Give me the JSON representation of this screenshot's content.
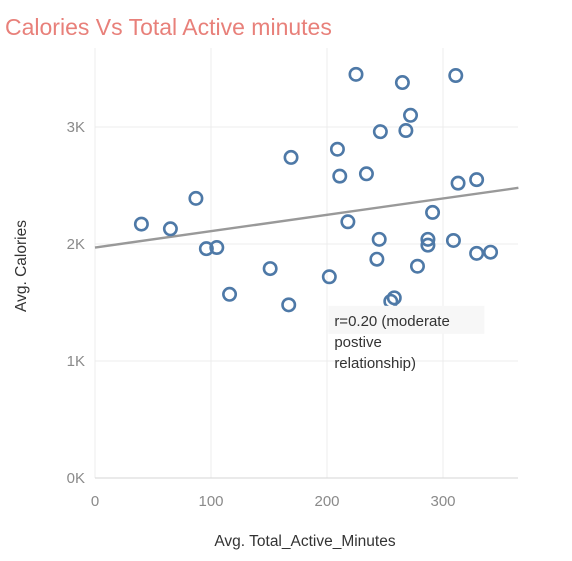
{
  "chart_data": {
    "type": "scatter",
    "title": "Calories Vs Total Active minutes",
    "xlabel": "Avg. Total_Active_Minutes",
    "ylabel": "Avg. Calories",
    "xlim": [
      0,
      365
    ],
    "ylim": [
      0,
      3700
    ],
    "x_ticks": [
      0,
      100,
      200,
      300
    ],
    "x_tick_labels": [
      "0",
      "100",
      "200",
      "300"
    ],
    "y_ticks": [
      0,
      1000,
      2000,
      3000
    ],
    "y_tick_labels": [
      "0K",
      "1K",
      "2K",
      "3K"
    ],
    "grid": true,
    "points": [
      {
        "x": 40,
        "y": 2170
      },
      {
        "x": 65,
        "y": 2130
      },
      {
        "x": 87,
        "y": 2390
      },
      {
        "x": 96,
        "y": 1960
      },
      {
        "x": 105,
        "y": 1970
      },
      {
        "x": 116,
        "y": 1570
      },
      {
        "x": 151,
        "y": 1790
      },
      {
        "x": 167,
        "y": 1480
      },
      {
        "x": 169,
        "y": 2740
      },
      {
        "x": 202,
        "y": 1720
      },
      {
        "x": 209,
        "y": 2810
      },
      {
        "x": 211,
        "y": 2580
      },
      {
        "x": 218,
        "y": 2190
      },
      {
        "x": 225,
        "y": 3450
      },
      {
        "x": 234,
        "y": 2600
      },
      {
        "x": 243,
        "y": 1870
      },
      {
        "x": 245,
        "y": 2040
      },
      {
        "x": 246,
        "y": 2960
      },
      {
        "x": 255,
        "y": 1510
      },
      {
        "x": 258,
        "y": 1540
      },
      {
        "x": 265,
        "y": 3380
      },
      {
        "x": 268,
        "y": 2970
      },
      {
        "x": 272,
        "y": 3100
      },
      {
        "x": 278,
        "y": 1810
      },
      {
        "x": 287,
        "y": 2040
      },
      {
        "x": 287,
        "y": 1990
      },
      {
        "x": 291,
        "y": 2270
      },
      {
        "x": 309,
        "y": 2030
      },
      {
        "x": 311,
        "y": 3440
      },
      {
        "x": 313,
        "y": 2520
      },
      {
        "x": 329,
        "y": 2550
      },
      {
        "x": 329,
        "y": 1920
      },
      {
        "x": 341,
        "y": 1930
      }
    ],
    "trend_line": {
      "x": [
        0,
        365
      ],
      "y": [
        1970,
        2480
      ]
    },
    "annotation": {
      "lines": [
        "r=0.20 (moderate",
        "postive",
        "relationship)"
      ],
      "x": 202,
      "y": 1130
    },
    "colors": {
      "marker": "#4e79a7",
      "trend": "#999999",
      "grid": "#ececec",
      "title": "#e8807a"
    }
  }
}
